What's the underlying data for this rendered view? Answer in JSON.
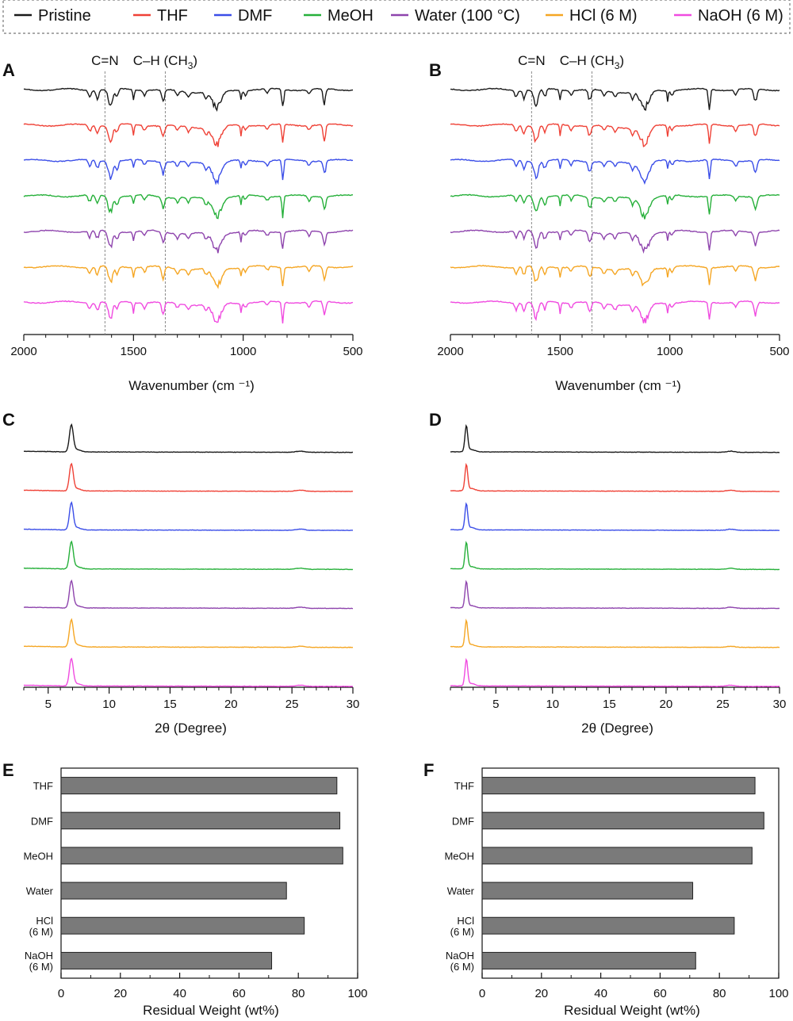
{
  "legend": {
    "items": [
      {
        "label": "Pristine",
        "color": "#1a1a1a"
      },
      {
        "label": "THF",
        "color": "#ef4136"
      },
      {
        "label": "DMF",
        "color": "#3b4ee8"
      },
      {
        "label": "MeOH",
        "color": "#26b03a"
      },
      {
        "label": "Water (100 °C)",
        "color": "#8e44ad"
      },
      {
        "label": "HCl (6 M)",
        "color": "#f5a623"
      },
      {
        "label": "NaOH (6 M)",
        "color": "#f04be0"
      }
    ]
  },
  "colors": {
    "Pristine": "#1a1a1a",
    "THF": "#ef4136",
    "DMF": "#3b4ee8",
    "MeOH": "#26b03a",
    "Water": "#8e44ad",
    "HCl": "#f5a623",
    "NaOH": "#f04be0"
  },
  "chart_data": [
    {
      "panel": "A",
      "type": "line",
      "xlabel": "Wavenumber (cm ⁻¹)",
      "xlim": [
        2000,
        500
      ],
      "x_ticks": [
        "2000",
        "1500",
        "1000",
        "500"
      ],
      "series": [
        {
          "name": "Pristine"
        },
        {
          "name": "THF"
        },
        {
          "name": "DMF"
        },
        {
          "name": "MeOH"
        },
        {
          "name": "Water (100 °C)"
        },
        {
          "name": "HCl (6 M)"
        },
        {
          "name": "NaOH (6 M)"
        }
      ],
      "ir_bands_cm1": [
        1700,
        1665,
        1605,
        1575,
        1500,
        1450,
        1365,
        1300,
        1250,
        1170,
        1120,
        1010,
        990,
        890,
        820,
        700,
        630
      ],
      "annotations": [
        {
          "text": "C=N",
          "x": 1630
        },
        {
          "text": "C–H (CH",
          "sub": "3",
          "close": ")",
          "x": 1355
        }
      ]
    },
    {
      "panel": "B",
      "type": "line",
      "xlabel": "Wavenumber (cm ⁻¹)",
      "xlim": [
        2000,
        500
      ],
      "x_ticks": [
        "2000",
        "1500",
        "1000",
        "500"
      ],
      "series": [
        {
          "name": "Pristine"
        },
        {
          "name": "THF"
        },
        {
          "name": "DMF"
        },
        {
          "name": "MeOH"
        },
        {
          "name": "Water (100 °C)"
        },
        {
          "name": "HCl (6 M)"
        },
        {
          "name": "NaOH (6 M)"
        }
      ],
      "ir_bands_cm1": [
        1700,
        1665,
        1610,
        1570,
        1500,
        1450,
        1365,
        1300,
        1250,
        1170,
        1115,
        1010,
        990,
        820,
        700,
        610
      ],
      "annotations": [
        {
          "text": "C=N",
          "x": 1630
        },
        {
          "text": "C–H (CH",
          "sub": "3",
          "close": ")",
          "x": 1355
        }
      ]
    },
    {
      "panel": "C",
      "type": "line",
      "xlabel": "2θ (Degree)",
      "xlim": [
        3,
        30
      ],
      "x_ticks": [
        "5",
        "10",
        "15",
        "20",
        "25",
        "30"
      ],
      "peak_2theta": 6.9,
      "series": [
        {
          "name": "Pristine"
        },
        {
          "name": "THF"
        },
        {
          "name": "DMF"
        },
        {
          "name": "MeOH"
        },
        {
          "name": "Water (100 °C)"
        },
        {
          "name": "HCl (6 M)"
        },
        {
          "name": "NaOH (6 M)"
        }
      ]
    },
    {
      "panel": "D",
      "type": "line",
      "xlabel": "2θ (Degree)",
      "xlim": [
        1,
        30
      ],
      "x_ticks": [
        "5",
        "10",
        "15",
        "20",
        "25",
        "30"
      ],
      "peak_2theta": 2.4,
      "series": [
        {
          "name": "Pristine"
        },
        {
          "name": "THF"
        },
        {
          "name": "DMF"
        },
        {
          "name": "MeOH"
        },
        {
          "name": "Water (100 °C)"
        },
        {
          "name": "HCl (6 M)"
        },
        {
          "name": "NaOH (6 M)"
        }
      ]
    },
    {
      "panel": "E",
      "type": "bar",
      "orientation": "horizontal",
      "xlabel": "Residual Weight (wt%)",
      "xlim": [
        0,
        100
      ],
      "x_ticks": [
        "0",
        "20",
        "40",
        "60",
        "80",
        "100"
      ],
      "categories": [
        "THF",
        "DMF",
        "MeOH",
        "Water",
        "HCl\n(6 M)",
        "NaOH\n(6 M)"
      ],
      "values": [
        93,
        94,
        95,
        76,
        82,
        71
      ]
    },
    {
      "panel": "F",
      "type": "bar",
      "orientation": "horizontal",
      "xlabel": "Residual Weight (wt%)",
      "xlim": [
        0,
        100
      ],
      "x_ticks": [
        "0",
        "20",
        "40",
        "60",
        "80",
        "100"
      ],
      "categories": [
        "THF",
        "DMF",
        "MeOH",
        "Water",
        "HCl\n(6 M)",
        "NaOH\n(6 M)"
      ],
      "values": [
        92,
        95,
        91,
        71,
        85,
        72
      ]
    }
  ]
}
